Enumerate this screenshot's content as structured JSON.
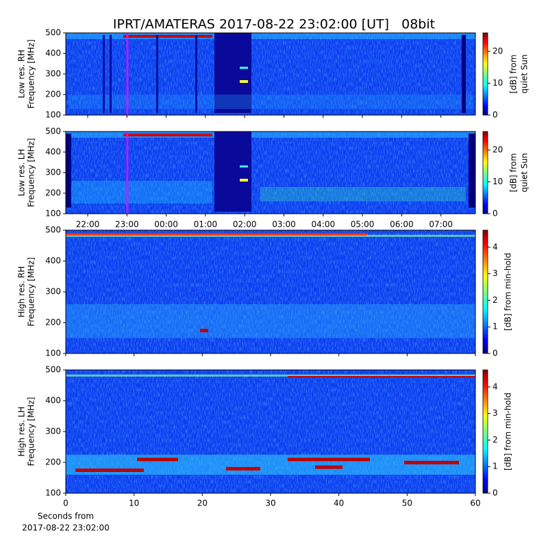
{
  "title": "IPRT/AMATERAS 2017-08-22 23:02:00 [UT]   08bit",
  "chart_data": [
    {
      "type": "heatmap",
      "ylabel": [
        "Low res. RH",
        "Frequency [MHz]"
      ],
      "ylim": [
        100,
        500
      ],
      "yticks": [
        100,
        200,
        300,
        400,
        500
      ],
      "colorbar_label": [
        "[dB] from",
        "quiet Sun"
      ],
      "clim": [
        0,
        25.8
      ],
      "cticks": [
        0,
        10,
        20
      ],
      "colormap": "jet"
    },
    {
      "type": "heatmap",
      "ylabel": [
        "Low res. LH",
        "Frequency [MHz]"
      ],
      "ylim": [
        100,
        500
      ],
      "yticks": [
        100,
        200,
        300,
        400,
        500
      ],
      "categories": [
        "22:00",
        "23:00",
        "00:00",
        "01:00",
        "02:00",
        "03:00",
        "04:00",
        "05:00",
        "06:00",
        "07:00"
      ],
      "colorbar_label": [
        "[dB] from",
        "quiet Sun"
      ],
      "clim": [
        0,
        25.8
      ],
      "cticks": [
        0,
        10,
        20
      ],
      "colormap": "jet"
    },
    {
      "type": "heatmap",
      "ylabel": [
        "High res. RH",
        "Frequency [MHz]"
      ],
      "ylim": [
        100,
        500
      ],
      "yticks": [
        100,
        200,
        300,
        400,
        500
      ],
      "xlim": [
        0,
        60
      ],
      "colorbar_label": [
        "[dB] from min-hold"
      ],
      "clim": [
        0,
        4.64
      ],
      "cticks": [
        0,
        1,
        2,
        3,
        4
      ],
      "colormap": "jet"
    },
    {
      "type": "heatmap",
      "ylabel": [
        "High res. LH",
        "Frequency [MHz]"
      ],
      "ylim": [
        100,
        500
      ],
      "yticks": [
        100,
        200,
        300,
        400,
        500
      ],
      "xlim": [
        0,
        60
      ],
      "xticks": [
        0,
        10,
        20,
        30,
        40,
        50,
        60
      ],
      "xlabel": [
        "Seconds from",
        "2017-08-22 23:02:00"
      ],
      "colorbar_label": [
        "[dB] from min-hold"
      ],
      "clim": [
        0,
        4.64
      ],
      "cticks": [
        0,
        1,
        2,
        3,
        4
      ],
      "colormap": "jet"
    }
  ]
}
